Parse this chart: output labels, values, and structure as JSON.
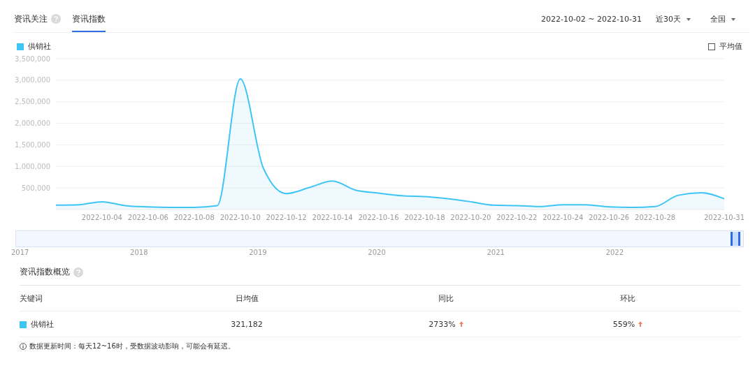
{
  "chart_data": {
    "type": "area",
    "title": "资讯指数",
    "x": [
      "2022-10-02",
      "2022-10-03",
      "2022-10-04",
      "2022-10-05",
      "2022-10-06",
      "2022-10-07",
      "2022-10-08",
      "2022-10-09",
      "2022-10-10",
      "2022-10-11",
      "2022-10-12",
      "2022-10-13",
      "2022-10-14",
      "2022-10-15",
      "2022-10-16",
      "2022-10-17",
      "2022-10-18",
      "2022-10-19",
      "2022-10-20",
      "2022-10-21",
      "2022-10-22",
      "2022-10-23",
      "2022-10-24",
      "2022-10-25",
      "2022-10-26",
      "2022-10-27",
      "2022-10-28",
      "2022-10-29",
      "2022-10-30",
      "2022-10-31"
    ],
    "series": [
      {
        "name": "供销社",
        "color": "#3ec5f5",
        "values": [
          100000,
          110000,
          180000,
          90000,
          60000,
          50000,
          50000,
          90000,
          3030000,
          960000,
          370000,
          510000,
          660000,
          450000,
          380000,
          320000,
          300000,
          250000,
          180000,
          100000,
          90000,
          70000,
          110000,
          110000,
          60000,
          50000,
          70000,
          330000,
          390000,
          250000
        ]
      }
    ],
    "xlim": [
      "2022-10-02",
      "2022-10-31"
    ],
    "xticks": [
      "2022-10-04",
      "2022-10-06",
      "2022-10-08",
      "2022-10-10",
      "2022-10-12",
      "2022-10-14",
      "2022-10-16",
      "2022-10-18",
      "2022-10-20",
      "2022-10-22",
      "2022-10-24",
      "2022-10-26",
      "2022-10-28",
      "2022-10-31"
    ],
    "ylim": [
      0,
      3500000
    ],
    "yticks": [
      {
        "value": 500000,
        "label": "500,000"
      },
      {
        "value": 1000000,
        "label": "1,000,000"
      },
      {
        "value": 1500000,
        "label": "1,500,000"
      },
      {
        "value": 2000000,
        "label": "2,000,000"
      },
      {
        "value": 2500000,
        "label": "2,500,000"
      },
      {
        "value": 3000000,
        "label": "3,000,000"
      },
      {
        "value": 3500000,
        "label": "3,500,000"
      }
    ],
    "grid": "y",
    "legend": "top left",
    "marker": "none",
    "line_style": "solid",
    "annotations": [
      "资讯关注",
      "2022-10-02 ~ 2022-10-31",
      "近30天",
      "全国",
      "平均值",
      "2017",
      "2018",
      "2019",
      "2020",
      "2021",
      "2022",
      "资讯指数概览",
      "关键词",
      "日均值",
      "同比",
      "环比",
      "321,182",
      "2733%",
      "559%",
      "数据更新时间：每天12~16时，受数据波动影响，可能会有延迟。"
    ]
  }
}
